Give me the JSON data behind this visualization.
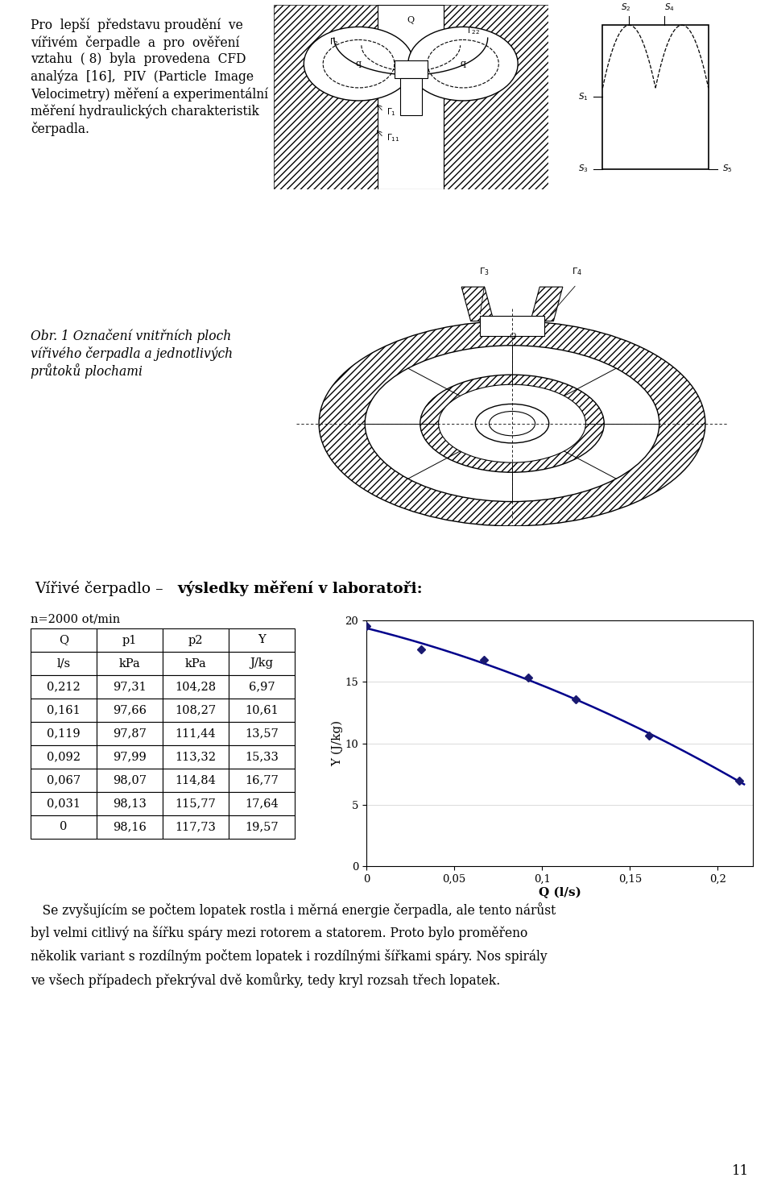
{
  "page_bg": "#ffffff",
  "paragraph1_lines": [
    "Pro  lepší  představu proudění  ve",
    "vířivém  čerpadle  a  pro  ověření",
    "vztahu  ( 8)  byla  provedena  CFD",
    "analýza  [16],  PIV  (Particle  Image",
    "Velocimetry) měření a experimentální",
    "měření hydraulických charakteristik",
    "čerpadla."
  ],
  "caption_lines": [
    "Obr. 1 Označení vnitřních ploch",
    "vířivého čerpadla a jednotlivých",
    "průtoků plochami"
  ],
  "heading_normal": "Vířivé čerpadlo – ",
  "heading_bold": "výsledky měření v laboratoři:",
  "n_label": "n=2000 ot/min",
  "table_headers": [
    "Q",
    "p1",
    "p2",
    "Y"
  ],
  "table_units": [
    "l/s",
    "kPa",
    "kPa",
    "J/kg"
  ],
  "table_data": [
    [
      "0,212",
      "97,31",
      "104,28",
      "6,97"
    ],
    [
      "0,161",
      "97,66",
      "108,27",
      "10,61"
    ],
    [
      "0,119",
      "97,87",
      "111,44",
      "13,57"
    ],
    [
      "0,092",
      "97,99",
      "113,32",
      "15,33"
    ],
    [
      "0,067",
      "98,07",
      "114,84",
      "16,77"
    ],
    [
      "0,031",
      "98,13",
      "115,77",
      "17,64"
    ],
    [
      "0",
      "98,16",
      "117,73",
      "19,57"
    ]
  ],
  "Q_data": [
    0.212,
    0.161,
    0.119,
    0.092,
    0.067,
    0.031,
    0.0
  ],
  "Y_data": [
    6.97,
    10.61,
    13.57,
    15.33,
    16.77,
    17.64,
    19.57
  ],
  "chart_xlabel": "Q (l/s)",
  "chart_ylabel": "Y (J/kg)",
  "chart_xlim": [
    0,
    0.22
  ],
  "chart_ylim": [
    0,
    20
  ],
  "chart_xticks": [
    0,
    0.05,
    0.1,
    0.15,
    0.2
  ],
  "chart_yticks": [
    0,
    5,
    10,
    15,
    20
  ],
  "chart_xtick_labels": [
    "0",
    "0,05",
    "0,1",
    "0,15",
    "0,2"
  ],
  "chart_ytick_labels": [
    "0",
    "5",
    "10",
    "15",
    "20"
  ],
  "line_color": "#00008B",
  "marker_color": "#191970",
  "bottom_lines": [
    "   Se zvyšujícím se počtem lopatek rostla i měrná energie čerpadla, ale tento nárůst",
    "byl velmi citlivý na šířku spáry mezi rotorem a statorem. Proto bylo proměřeno",
    "několik variant s rozdílným počtem lopatek i rozdílnými šířkami spáry. Nos spirály",
    "ve všech případech překrýval dvě komůrky, tedy kryl rozsah třech lopatek."
  ],
  "page_number": "11",
  "hatch_color": "#aaaaaa",
  "draw_line_color": "#000000"
}
